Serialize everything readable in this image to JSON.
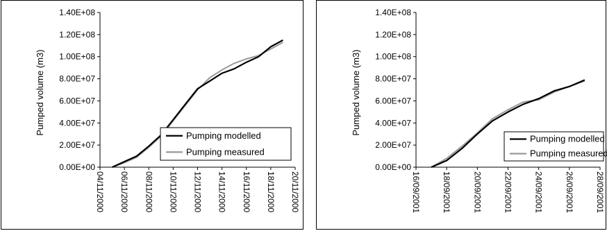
{
  "chart_data": [
    {
      "type": "line",
      "title": "",
      "xlabel": "",
      "ylabel": "Pumped volume (m3)",
      "ylim": [
        0,
        140000000
      ],
      "yticks": [
        "0.00E+00",
        "2.00E+07",
        "4.00E+07",
        "6.00E+07",
        "8.00E+07",
        "1.00E+08",
        "1.20E+08",
        "1.40E+08"
      ],
      "xlim": [
        "2000-11-04",
        "2000-11-20"
      ],
      "xticks": [
        "04/11/2000",
        "06/11/2000",
        "08/11/2000",
        "10/11/2000",
        "12/11/2000",
        "14/11/2000",
        "16/11/2000",
        "18/11/2000",
        "20/11/2000"
      ],
      "grid": false,
      "legend_position": "bottom-right",
      "series": [
        {
          "name": "Pumping modelled",
          "color": "#000000",
          "x": [
            "2000-11-05",
            "2000-11-06",
            "2000-11-07",
            "2000-11-08",
            "2000-11-09",
            "2000-11-10",
            "2000-11-11",
            "2000-11-12",
            "2000-11-13",
            "2000-11-14",
            "2000-11-15",
            "2000-11-16",
            "2000-11-17",
            "2000-11-18",
            "2000-11-19"
          ],
          "y": [
            0,
            5000000,
            10000000,
            19000000,
            29000000,
            43000000,
            57000000,
            71000000,
            78000000,
            85000000,
            89000000,
            95000000,
            100000000,
            109000000,
            115000000
          ]
        },
        {
          "name": "Pumping measured",
          "color": "#999999",
          "x": [
            "2000-11-05",
            "2000-11-06",
            "2000-11-07",
            "2000-11-08",
            "2000-11-09",
            "2000-11-10",
            "2000-11-11",
            "2000-11-12",
            "2000-11-13",
            "2000-11-14",
            "2000-11-15",
            "2000-11-16",
            "2000-11-17",
            "2000-11-18",
            "2000-11-19"
          ],
          "y": [
            0,
            4000000,
            9000000,
            18000000,
            28000000,
            42000000,
            56000000,
            70000000,
            81000000,
            88000000,
            94000000,
            98000000,
            101000000,
            107000000,
            113000000
          ]
        }
      ]
    },
    {
      "type": "line",
      "title": "",
      "xlabel": "",
      "ylabel": "Pumped volume (m3)",
      "ylim": [
        0,
        140000000
      ],
      "yticks": [
        "0.00E+00",
        "2.00E+07",
        "4.00E+07",
        "6.00E+07",
        "8.00E+07",
        "1.00E+08",
        "1.20E+08",
        "1.40E+08"
      ],
      "xlim": [
        "2001-09-16",
        "2001-09-28"
      ],
      "xticks": [
        "16/09/2001",
        "18/09/2001",
        "20/09/2001",
        "22/09/2001",
        "24/09/2001",
        "26/09/2001",
        "28/09/2001"
      ],
      "grid": false,
      "legend_position": "bottom-right",
      "series": [
        {
          "name": "Pumping modelled",
          "color": "#000000",
          "x": [
            "2001-09-17",
            "2001-09-18",
            "2001-09-19",
            "2001-09-20",
            "2001-09-21",
            "2001-09-22",
            "2001-09-23",
            "2001-09-24",
            "2001-09-25",
            "2001-09-26",
            "2001-09-27"
          ],
          "y": [
            0,
            6000000,
            17000000,
            30000000,
            42000000,
            50000000,
            57000000,
            62000000,
            69000000,
            73000000,
            79000000
          ]
        },
        {
          "name": "Pumping measured",
          "color": "#999999",
          "x": [
            "2001-09-17",
            "2001-09-18",
            "2001-09-19",
            "2001-09-20",
            "2001-09-21",
            "2001-09-22",
            "2001-09-23",
            "2001-09-24",
            "2001-09-25",
            "2001-09-26",
            "2001-09-27"
          ],
          "y": [
            0,
            8000000,
            19000000,
            31000000,
            44000000,
            52000000,
            59000000,
            61000000,
            68000000,
            73000000,
            78000000
          ]
        }
      ]
    }
  ]
}
